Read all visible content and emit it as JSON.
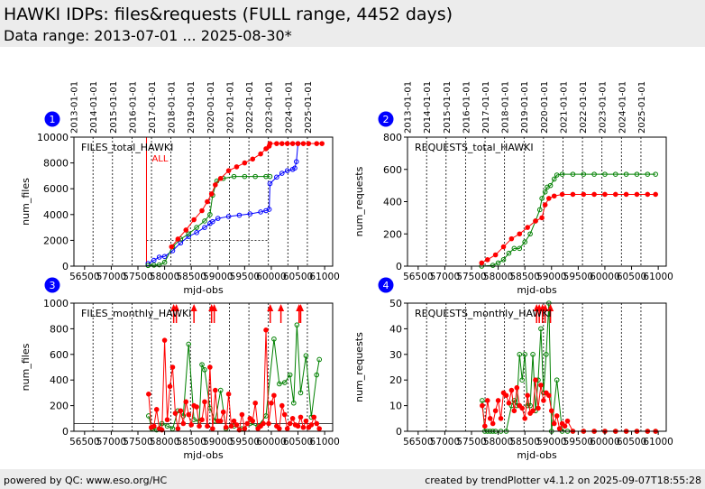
{
  "page": {
    "title": "HAWKI IDPs: files&requests (FULL range, 4452 days)",
    "subtitle": "Data range: 2013-07-01 ... 2025-08-30*",
    "footer_left": "powered by QC: www.eso.org/HC",
    "footer_right": "created by trendPlotter v4.1.2 on 2025-09-07T18:55:28"
  },
  "colors": {
    "red": "#ff0000",
    "green": "#008000",
    "blue": "#0000ff",
    "badge": "#0000ff"
  },
  "shared_axes": {
    "x_range": [
      56300,
      61150
    ],
    "x_ticks": [
      56500,
      57000,
      57500,
      58000,
      58500,
      59000,
      59500,
      60000,
      60500,
      61000
    ],
    "x_tick_labels": [
      "56500",
      "57000",
      "57500",
      "58000",
      "58500",
      "59000",
      "59500",
      "60000",
      "60500",
      "61000"
    ],
    "date_lines": [
      56658,
      57023,
      57388,
      57754,
      58119,
      58484,
      58849,
      59215,
      59580,
      59945,
      60310,
      60676
    ],
    "date_labels": [
      "2013-01-01",
      "2014-01-01",
      "2015-01-01",
      "2016-01-01",
      "2017-01-01",
      "2018-01-01",
      "2019-01-01",
      "2020-01-01",
      "2021-01-01",
      "2022-01-01",
      "2023-01-01",
      "2024-01-01",
      "2025-01-01"
    ],
    "date_label_mjd": [
      56293,
      56658,
      57023,
      57388,
      57754,
      58119,
      58484,
      58849,
      59215,
      59580,
      59945,
      60310,
      60676
    ]
  },
  "chart_data": [
    {
      "panel_number": "1",
      "type": "line",
      "in_plot_label": "FILES_total_HAWKI",
      "xlabel": "mjd-obs",
      "ylabel": "num_files",
      "ylim": [
        0,
        10000
      ],
      "y_ticks": [
        0,
        2000,
        4000,
        6000,
        8000,
        10000
      ],
      "y_tick_labels": [
        "0",
        "2000",
        "4000",
        "6000",
        "8000",
        "10000"
      ],
      "marker_line": {
        "x": 57660,
        "label": "ALL"
      },
      "reference_line": {
        "y": 2000,
        "x_from": 57660,
        "x_to": 59960
      },
      "series": [
        {
          "color_key": "blue",
          "x": [
            57690,
            57800,
            57900,
            58000,
            58150,
            58300,
            58450,
            58600,
            58750,
            58850,
            58900,
            59000,
            59200,
            59400,
            59600,
            59800,
            59900,
            59960,
            59975,
            60100,
            60200,
            60300,
            60400,
            60440,
            60470,
            60500
          ],
          "y": [
            200,
            450,
            700,
            750,
            1200,
            1800,
            2300,
            2600,
            3000,
            3300,
            3450,
            3700,
            3850,
            3950,
            4050,
            4200,
            4300,
            4400,
            6400,
            6900,
            7200,
            7400,
            7500,
            7600,
            8100,
            9500
          ]
        },
        {
          "color_key": "green",
          "x": [
            57690,
            57800,
            57900,
            58000,
            58150,
            58300,
            58450,
            58600,
            58750,
            58850,
            58900,
            58980,
            59100,
            59300,
            59500,
            59700,
            59900,
            59975
          ],
          "y": [
            50,
            80,
            100,
            300,
            1500,
            2100,
            2500,
            3000,
            3500,
            4000,
            5500,
            6600,
            6800,
            6950,
            6950,
            6950,
            6950,
            6950
          ]
        },
        {
          "color_key": "red",
          "x": [
            58130,
            58250,
            58400,
            58550,
            58700,
            58800,
            58880,
            58950,
            59050,
            59200,
            59350,
            59500,
            59650,
            59800,
            59900,
            59960,
            59975,
            60100,
            60200,
            60300,
            60400,
            60500,
            60600,
            60700,
            60850,
            60950
          ],
          "y": [
            1500,
            2100,
            2800,
            3600,
            4300,
            5000,
            5600,
            6300,
            6800,
            7400,
            7700,
            8000,
            8300,
            8700,
            9100,
            9300,
            9500,
            9500,
            9500,
            9500,
            9500,
            9500,
            9500,
            9500,
            9500,
            9500
          ]
        }
      ]
    },
    {
      "panel_number": "2",
      "type": "line",
      "in_plot_label": "REQUESTS_total_HAWKI",
      "xlabel": "mjd-obs",
      "ylabel": "num_requests",
      "ylim": [
        0,
        800
      ],
      "y_ticks": [
        0,
        200,
        400,
        600,
        800
      ],
      "y_tick_labels": [
        "0",
        "200",
        "400",
        "600",
        "800"
      ],
      "series": [
        {
          "color_key": "green",
          "x": [
            57690,
            57900,
            58000,
            58100,
            58200,
            58300,
            58400,
            58500,
            58600,
            58700,
            58780,
            58820,
            58880,
            58920,
            58980,
            59050,
            59100,
            59200,
            59400,
            59600,
            59800,
            60000,
            60200,
            60400,
            60600,
            60800,
            60950
          ],
          "y": [
            0,
            5,
            20,
            40,
            80,
            110,
            110,
            150,
            200,
            280,
            350,
            420,
            460,
            490,
            500,
            540,
            565,
            570,
            570,
            570,
            570,
            570,
            570,
            570,
            570,
            570,
            570
          ]
        },
        {
          "color_key": "red",
          "x": [
            57690,
            57800,
            57950,
            58100,
            58250,
            58400,
            58550,
            58700,
            58820,
            58880,
            58950,
            59050,
            59200,
            59400,
            59600,
            59800,
            60000,
            60200,
            60400,
            60600,
            60800,
            60950
          ],
          "y": [
            20,
            40,
            70,
            120,
            170,
            200,
            240,
            280,
            300,
            380,
            420,
            435,
            445,
            445,
            445,
            445,
            445,
            445,
            445,
            445,
            445,
            445
          ]
        }
      ]
    },
    {
      "panel_number": "3",
      "type": "line",
      "in_plot_label": "FILES_monthly_HAWKI",
      "xlabel": "mjd-obs",
      "ylabel": "num_files",
      "ylim": [
        0,
        1000
      ],
      "y_ticks": [
        0,
        200,
        400,
        600,
        800,
        1000
      ],
      "y_tick_labels": [
        "0",
        "200",
        "400",
        "600",
        "800",
        "1000"
      ],
      "reference_line": {
        "y": 60,
        "x_from": 56300,
        "x_to": 61150
      },
      "arrows_at_top": [
        58170,
        58220,
        58550,
        58880,
        58930,
        59980,
        60180,
        60520,
        60550
      ],
      "series": [
        {
          "color_key": "green",
          "x": [
            57700,
            57760,
            57850,
            57950,
            58050,
            58150,
            58250,
            58350,
            58450,
            58550,
            58650,
            58700,
            58750,
            58850,
            58950,
            59050,
            59150,
            59300,
            59450,
            59600,
            59750,
            59900,
            60050,
            60150,
            60250,
            60350,
            60420,
            60480,
            60550,
            60650,
            60750,
            60850,
            60900
          ],
          "y": [
            120,
            20,
            10,
            60,
            40,
            20,
            160,
            120,
            680,
            90,
            80,
            520,
            480,
            180,
            80,
            320,
            20,
            40,
            20,
            60,
            40,
            120,
            720,
            370,
            380,
            440,
            220,
            830,
            300,
            590,
            110,
            440,
            560
          ]
        },
        {
          "color_key": "red",
          "x": [
            57700,
            57750,
            57800,
            57850,
            57900,
            57950,
            58000,
            58050,
            58100,
            58150,
            58200,
            58250,
            58300,
            58350,
            58400,
            58450,
            58500,
            58550,
            58600,
            58650,
            58700,
            58750,
            58800,
            58850,
            58900,
            58950,
            59000,
            59050,
            59100,
            59150,
            59200,
            59250,
            59300,
            59350,
            59400,
            59450,
            59500,
            59550,
            59600,
            59650,
            59700,
            59750,
            59800,
            59850,
            59900,
            59950,
            60000,
            60050,
            60100,
            60150,
            60200,
            60250,
            60300,
            60350,
            60400,
            60450,
            60500,
            60550,
            60600,
            60650,
            60700,
            60750,
            60800,
            60850,
            60900
          ],
          "y": [
            290,
            30,
            40,
            170,
            20,
            10,
            710,
            90,
            350,
            500,
            140,
            20,
            160,
            60,
            230,
            130,
            50,
            200,
            190,
            40,
            90,
            230,
            40,
            500,
            20,
            320,
            80,
            80,
            150,
            30,
            290,
            40,
            80,
            50,
            10,
            130,
            20,
            60,
            100,
            80,
            220,
            20,
            40,
            60,
            790,
            60,
            220,
            280,
            40,
            20,
            200,
            130,
            20,
            60,
            100,
            50,
            40,
            110,
            30,
            80,
            30,
            50,
            110,
            60,
            20
          ]
        }
      ]
    },
    {
      "panel_number": "4",
      "type": "line",
      "in_plot_label": "REQUESTS_monthly_HAWKI",
      "xlabel": "mjd-obs",
      "ylabel": "num_requests",
      "ylim": [
        0,
        50
      ],
      "y_ticks": [
        0,
        10,
        20,
        30,
        40,
        50
      ],
      "y_tick_labels": [
        "0",
        "10",
        "20",
        "30",
        "40",
        "50"
      ],
      "arrows_at_top": [
        58720,
        58770,
        58830,
        58880,
        58980
      ],
      "series": [
        {
          "color_key": "green",
          "x": [
            57700,
            57750,
            57800,
            57850,
            57900,
            57950,
            58050,
            58150,
            58250,
            58300,
            58350,
            58400,
            58450,
            58500,
            58550,
            58600,
            58650,
            58700,
            58750,
            58800,
            58850,
            58900,
            58950,
            59000,
            59100,
            59200,
            59300,
            59400,
            59600,
            59800,
            60000,
            60200,
            60400,
            60600,
            60800,
            60950
          ],
          "y": [
            12,
            0,
            0,
            0,
            0,
            0,
            0,
            0,
            10,
            12,
            10,
            30,
            20,
            30,
            10,
            10,
            30,
            8,
            20,
            40,
            15,
            30,
            50,
            0,
            20,
            0,
            0,
            0,
            0,
            0,
            0,
            0,
            0,
            0,
            0,
            0
          ]
        },
        {
          "color_key": "red",
          "x": [
            57700,
            57750,
            57800,
            57850,
            57900,
            57950,
            58000,
            58050,
            58100,
            58150,
            58200,
            58250,
            58300,
            58350,
            58400,
            58450,
            58500,
            58550,
            58600,
            58650,
            58700,
            58750,
            58800,
            58850,
            58900,
            58950,
            59000,
            59050,
            59100,
            59150,
            59200,
            59250,
            59300,
            59400,
            59600,
            59800,
            60000,
            60200,
            60400,
            60600,
            60800,
            60950
          ],
          "y": [
            10,
            2,
            12,
            5,
            3,
            8,
            12,
            5,
            15,
            14,
            11,
            16,
            8,
            17,
            10,
            9,
            5,
            14,
            7,
            8,
            20,
            9,
            18,
            12,
            15,
            14,
            8,
            3,
            6,
            1,
            3,
            2,
            4,
            0,
            0,
            0,
            0,
            0,
            0,
            0,
            0,
            0
          ]
        }
      ]
    }
  ]
}
